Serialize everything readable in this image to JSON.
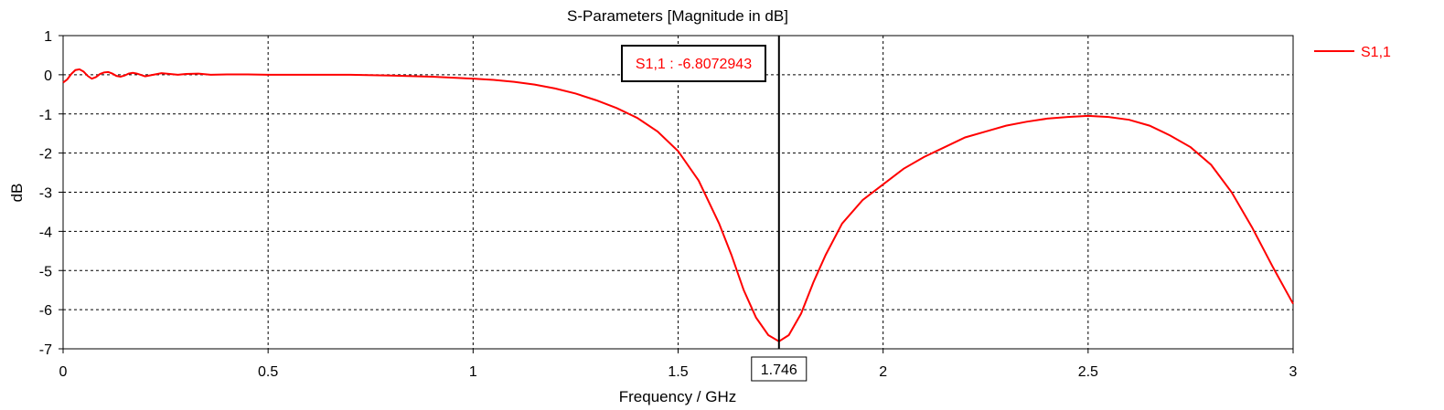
{
  "chart_data": {
    "type": "line",
    "title": "S-Parameters [Magnitude in dB]",
    "xlabel": "Frequency / GHz",
    "ylabel": "dB",
    "xlim": [
      0,
      3
    ],
    "ylim": [
      -7,
      1
    ],
    "xticks": [
      0,
      0.5,
      1,
      1.5,
      2,
      2.5,
      3
    ],
    "xtick_labels": [
      "0",
      "0.5",
      "1",
      "1.5",
      "2",
      "2.5",
      "3"
    ],
    "yticks": [
      1,
      0,
      -1,
      -2,
      -3,
      -4,
      -5,
      -6,
      -7
    ],
    "ytick_labels": [
      "1",
      "0",
      "-1",
      "-2",
      "-3",
      "-4",
      "-5",
      "-6",
      "-7"
    ],
    "grid": true,
    "grid_style": "dashed",
    "legend_position": "right",
    "series": [
      {
        "name": "S1,1",
        "color": "#ff0000",
        "x": [
          0.0,
          0.01,
          0.02,
          0.03,
          0.04,
          0.05,
          0.06,
          0.07,
          0.08,
          0.09,
          0.1,
          0.11,
          0.12,
          0.13,
          0.14,
          0.15,
          0.16,
          0.17,
          0.18,
          0.2,
          0.22,
          0.24,
          0.26,
          0.28,
          0.3,
          0.33,
          0.36,
          0.4,
          0.45,
          0.5,
          0.6,
          0.7,
          0.8,
          0.9,
          1.0,
          1.05,
          1.1,
          1.15,
          1.2,
          1.25,
          1.3,
          1.35,
          1.4,
          1.45,
          1.5,
          1.55,
          1.6,
          1.63,
          1.66,
          1.69,
          1.72,
          1.746,
          1.77,
          1.8,
          1.83,
          1.86,
          1.9,
          1.95,
          2.0,
          2.05,
          2.1,
          2.15,
          2.2,
          2.25,
          2.3,
          2.35,
          2.4,
          2.45,
          2.5,
          2.55,
          2.6,
          2.65,
          2.7,
          2.75,
          2.8,
          2.85,
          2.9,
          2.95,
          3.0
        ],
        "y": [
          -0.2,
          -0.12,
          0.02,
          0.12,
          0.14,
          0.08,
          -0.03,
          -0.1,
          -0.06,
          0.02,
          0.06,
          0.07,
          0.03,
          -0.03,
          -0.05,
          -0.02,
          0.03,
          0.05,
          0.03,
          -0.04,
          0.0,
          0.04,
          0.02,
          0.0,
          0.02,
          0.03,
          0.0,
          0.01,
          0.01,
          0.0,
          0.0,
          0.0,
          -0.02,
          -0.05,
          -0.1,
          -0.13,
          -0.18,
          -0.25,
          -0.35,
          -0.48,
          -0.65,
          -0.85,
          -1.1,
          -1.45,
          -1.95,
          -2.7,
          -3.8,
          -4.6,
          -5.5,
          -6.2,
          -6.65,
          -6.81,
          -6.65,
          -6.1,
          -5.3,
          -4.6,
          -3.8,
          -3.2,
          -2.8,
          -2.4,
          -2.1,
          -1.85,
          -1.6,
          -1.45,
          -1.3,
          -1.2,
          -1.12,
          -1.08,
          -1.05,
          -1.08,
          -1.15,
          -1.3,
          -1.55,
          -1.85,
          -2.3,
          -3.0,
          -3.9,
          -4.9,
          -5.85
        ]
      }
    ],
    "marker": {
      "x": 1.746,
      "x_label": "1.746",
      "readout": "S1,1 : -6.8072943"
    }
  }
}
